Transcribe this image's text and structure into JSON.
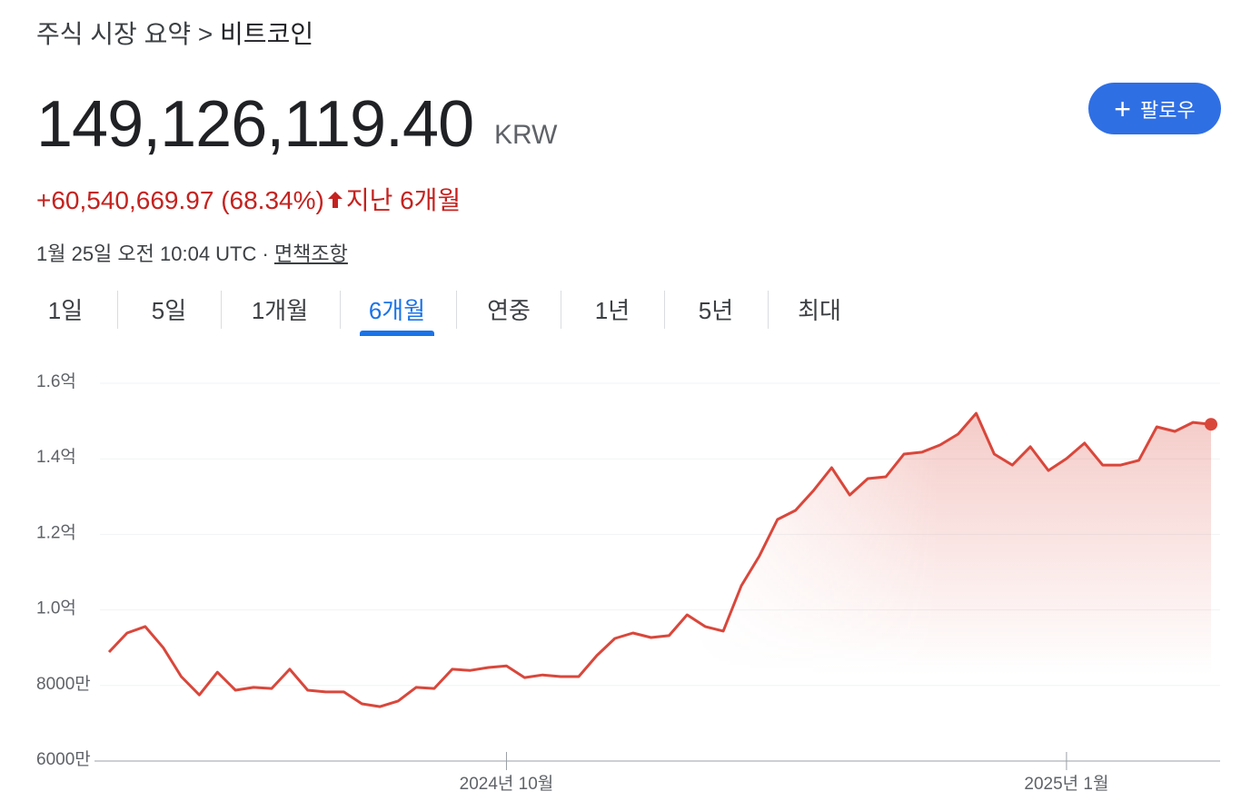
{
  "header": {
    "breadcrumb": "주식 시장 요약",
    "separator": ">",
    "current": "비트코인"
  },
  "quote": {
    "price": "149,126,119.40",
    "currency": "KRW",
    "change": "+60,540,669.97 (68.34%)",
    "period": "지난 6개월",
    "timestamp": "1월 25일 오전 10:04 UTC · ",
    "disclaimer": "면책조항"
  },
  "follow_button": "팔로우",
  "tabs": [
    "1일",
    "5일",
    "1개월",
    "6개월",
    "연중",
    "1년",
    "5년",
    "최대"
  ],
  "active_tab": 3,
  "chart_data": {
    "type": "area",
    "color": "#d9473b",
    "grid": true,
    "values": [
      8885,
      9390,
      9560,
      9000,
      8235,
      7750,
      8350,
      7875,
      7950,
      7920,
      8430,
      7875,
      7830,
      7830,
      7515,
      7440,
      7590,
      7950,
      7920,
      8430,
      8400,
      8475,
      8520,
      8210,
      8280,
      8235,
      8235,
      8790,
      9245,
      9390,
      9270,
      9320,
      9870,
      9560,
      9440,
      10640,
      11430,
      12395,
      12635,
      13160,
      13765,
      13040,
      13475,
      13525,
      14125,
      14175,
      14365,
      14655,
      15205,
      14125,
      13835,
      14320,
      13690,
      14005,
      14415,
      13835,
      13835,
      13960,
      14845,
      14725,
      14965,
      14913
    ],
    "xlim": [
      0,
      61
    ],
    "xticks": [
      {
        "value": 22,
        "label": "2024년 10월"
      },
      {
        "value": 53,
        "label": "2025년 1월"
      }
    ],
    "ylim": [
      6000,
      16000
    ],
    "yticks": [
      {
        "value": 6000,
        "label": "6000만"
      },
      {
        "value": 8000,
        "label": "8000만"
      },
      {
        "value": 10000,
        "label": "1.0억"
      },
      {
        "value": 12000,
        "label": "1.2억"
      },
      {
        "value": 14000,
        "label": "1.4억"
      },
      {
        "value": 16000,
        "label": "1.6억"
      }
    ]
  }
}
